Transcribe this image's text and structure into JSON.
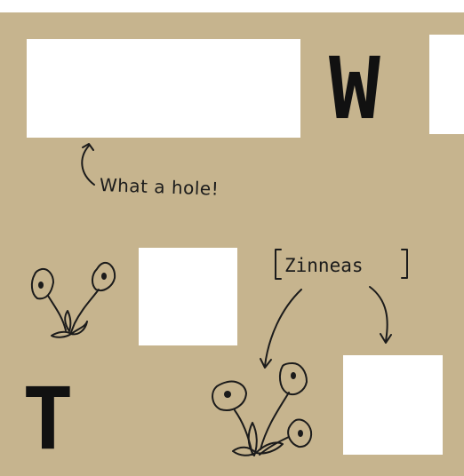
{
  "colors": {
    "background": "#c6b48e",
    "hole": "#ffffff",
    "ink": "#111111"
  },
  "letters": {
    "top": "W",
    "bottom": "T"
  },
  "captions": {
    "hole": "What a hole!",
    "flowers": "Zinneas"
  }
}
